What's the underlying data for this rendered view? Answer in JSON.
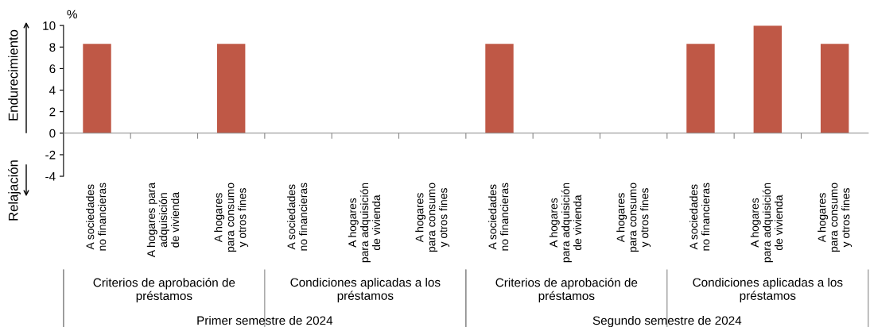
{
  "chart_data": {
    "type": "bar",
    "categories": [
      "A sociedades\nno financieras",
      "A hogares para\nadquisición\nde vivienda",
      "A hogares\npara consumo\ny otros fines",
      "A sociedades\nno financieras",
      "A hogares\npara adquisición\nde vivienda",
      "A hogares\npara consumo\ny otros fines",
      "A sociedades\nno financieras",
      "A hogares\npara adquisición\nde vivienda",
      "A hogares\npara consumo\ny otros fines",
      "A sociedades\nno financieras",
      "A hogares\npara adquisición\nde vivienda",
      "A hogares\npara consumo\ny otros fines"
    ],
    "values": [
      8.3,
      0,
      8.3,
      0,
      0,
      0,
      8.3,
      0,
      0,
      8.3,
      10,
      8.3
    ],
    "color": "#bf5846",
    "ylabel": "%",
    "ylim": [
      -4,
      10
    ],
    "yticks": [
      -4,
      -2,
      0,
      2,
      4,
      6,
      8,
      10
    ],
    "annotations": [
      "Endurecimiento",
      "Relajación",
      "Criterios de aprobación de\npréstamos",
      "Condiciones aplicadas a los\npréstamos",
      "Criterios de aprobación de\npréstamos",
      "Condiciones aplicadas a los\npréstamos",
      "Primer semestre de 2024",
      "Segundo semestre de 2024"
    ],
    "legend": false
  }
}
